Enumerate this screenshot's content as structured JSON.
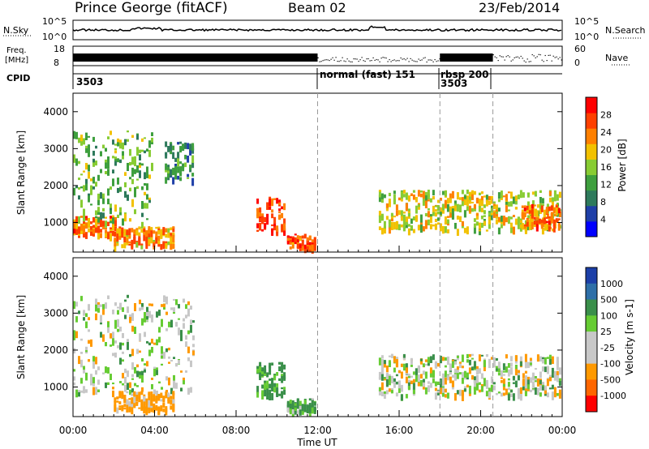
{
  "header": {
    "station": "Prince George (fitACF)",
    "beam": "Beam 02",
    "date": "23/Feb/2014"
  },
  "strip": {
    "nsky_label": "N.Sky",
    "nsky_ticks": [
      "10^5",
      "10^0"
    ],
    "nsearch_label": "N.Search",
    "freq_label_1": "Freq.",
    "freq_label_2": "[MHz]",
    "freq_ticks": [
      "18",
      "8"
    ],
    "nave_ticks": [
      "60",
      "0"
    ],
    "nave_label": "Nave",
    "cpid_label": "CPID",
    "cpid_segments": [
      {
        "label": "3503",
        "start_hour": 0
      },
      {
        "label": "normal (fast)  151",
        "start_hour": 12
      },
      {
        "label": "rbsp  200",
        "start_hour": 18
      },
      {
        "label": "3503",
        "start_hour": 18
      }
    ]
  },
  "colors": {
    "power_scale": [
      "#0000ff",
      "#1f3fa8",
      "#2e7a5c",
      "#3e9f3e",
      "#88cc33",
      "#f2c100",
      "#ff8000",
      "#ff4000",
      "#ff0000"
    ],
    "velocity_scale": [
      "#1c3fa8",
      "#2e6fa8",
      "#3a8f4a",
      "#66cc33",
      "#c8c8c8",
      "#c8c8c8",
      "#ff9900",
      "#ff6600",
      "#ff0000"
    ]
  },
  "chart_data": [
    {
      "type": "heatmap",
      "panel": "power",
      "ylabel": "Slant Range [km]",
      "yticks": [
        "1000",
        "2000",
        "3000",
        "4000"
      ],
      "ylim": [
        200,
        4500
      ],
      "xlim": [
        0,
        24
      ],
      "colorbar_label": "Power [dB]",
      "colorbar_ticks": [
        "4",
        "8",
        "12",
        "16",
        "20",
        "24",
        "28"
      ],
      "colorbar_range": [
        0,
        32
      ],
      "echo_regions": [
        {
          "start_hour": 0.0,
          "end_hour": 2.2,
          "range_km": [
            700,
            1200
          ],
          "value": 24
        },
        {
          "start_hour": 0.0,
          "end_hour": 4.0,
          "range_km": [
            1000,
            3500
          ],
          "value": 14
        },
        {
          "start_hour": 2.0,
          "end_hour": 5.0,
          "range_km": [
            400,
            900
          ],
          "value": 22
        },
        {
          "start_hour": 4.5,
          "end_hour": 6.0,
          "range_km": [
            2200,
            3200
          ],
          "value": 10
        },
        {
          "start_hour": 9.0,
          "end_hour": 10.5,
          "range_km": [
            800,
            1700
          ],
          "value": 26
        },
        {
          "start_hour": 10.5,
          "end_hour": 12.0,
          "range_km": [
            350,
            700
          ],
          "value": 26
        },
        {
          "start_hour": 15.0,
          "end_hour": 24.0,
          "range_km": [
            800,
            1900
          ],
          "value": 18
        },
        {
          "start_hour": 22.0,
          "end_hour": 24.0,
          "range_km": [
            900,
            1500
          ],
          "value": 24
        }
      ]
    },
    {
      "type": "heatmap",
      "panel": "velocity",
      "ylabel": "Slant Range [km]",
      "yticks": [
        "1000",
        "2000",
        "3000",
        "4000"
      ],
      "ylim": [
        200,
        4500
      ],
      "xlim": [
        0,
        24
      ],
      "xticks": [
        "00:00",
        "04:00",
        "08:00",
        "12:00",
        "16:00",
        "20:00",
        "00:00"
      ],
      "xlabel": "Time UT",
      "colorbar_label": "Velocity [m s-1]",
      "colorbar_ticks": [
        "1000",
        "500",
        "100",
        "25",
        "-25",
        "-100",
        "-500",
        "-1000"
      ],
      "echo_regions": [
        {
          "start_hour": 0.0,
          "end_hour": 6.0,
          "range_km": [
            900,
            3500
          ],
          "value": 0
        },
        {
          "start_hour": 2.0,
          "end_hour": 5.0,
          "range_km": [
            400,
            900
          ],
          "value": -200
        },
        {
          "start_hour": 9.0,
          "end_hour": 10.5,
          "range_km": [
            800,
            1700
          ],
          "value": 200
        },
        {
          "start_hour": 10.5,
          "end_hour": 12.0,
          "range_km": [
            350,
            700
          ],
          "value": 150
        },
        {
          "start_hour": 15.0,
          "end_hour": 24.0,
          "range_km": [
            800,
            1900
          ],
          "value": 0
        }
      ]
    }
  ]
}
